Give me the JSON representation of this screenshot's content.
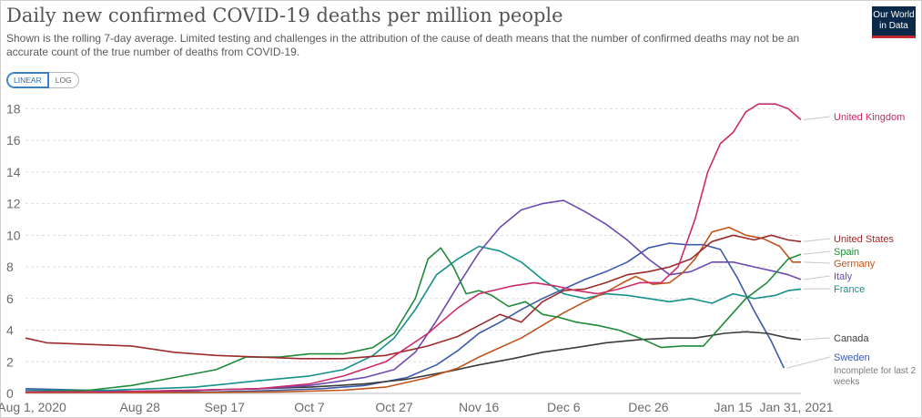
{
  "header": {
    "title": "Daily new confirmed COVID-19 deaths per million people",
    "subtitle": "Shown is the rolling 7-day average. Limited testing and challenges in the attribution of the cause of death means that the number of confirmed deaths may not be an accurate count of the true number of deaths from COVID-19.",
    "logo_line1": "Our World",
    "logo_line2": "in Data"
  },
  "scale_toggle": {
    "linear_label": "LINEAR",
    "log_label": "LOG",
    "selected": "LINEAR"
  },
  "colors": {
    "United Kingdom": "#cc2a6b",
    "United States": "#9c2b2b",
    "Spain": "#1f8a3a",
    "Germany": "#c0541a",
    "Italy": "#6d4ab1",
    "France": "#16908a",
    "Canada": "#3b3b3b",
    "Sweden": "#3d5ba8"
  },
  "chart_data": {
    "type": "line",
    "x_tick_labels": [
      "Aug 1, 2020",
      "Aug 28",
      "Sep 17",
      "Oct 7",
      "Oct 27",
      "Nov 16",
      "Dec 6",
      "Dec 26",
      "Jan 15",
      "Jan 31, 2021"
    ],
    "x_tick_days": [
      0,
      27,
      47,
      67,
      87,
      107,
      127,
      147,
      167,
      183
    ],
    "x_range_days": [
      0,
      183
    ],
    "ylim": [
      0,
      19
    ],
    "y_ticks": [
      0,
      2,
      4,
      6,
      8,
      10,
      12,
      14,
      16,
      18
    ],
    "grid": "horizontal dashed",
    "legend": "line labels at right end",
    "note_sweden": "Incomplete for last 2 weeks",
    "series": [
      {
        "name": "United Kingdom",
        "points": [
          [
            0,
            0.1
          ],
          [
            20,
            0.1
          ],
          [
            40,
            0.2
          ],
          [
            55,
            0.3
          ],
          [
            67,
            0.6
          ],
          [
            75,
            1.1
          ],
          [
            85,
            2.0
          ],
          [
            95,
            3.8
          ],
          [
            102,
            5.4
          ],
          [
            107,
            6.3
          ],
          [
            115,
            6.8
          ],
          [
            120,
            7.0
          ],
          [
            125,
            6.8
          ],
          [
            130,
            6.5
          ],
          [
            135,
            6.3
          ],
          [
            140,
            6.6
          ],
          [
            145,
            7.0
          ],
          [
            150,
            7.0
          ],
          [
            154,
            8.0
          ],
          [
            158,
            11.0
          ],
          [
            161,
            14.0
          ],
          [
            164,
            15.8
          ],
          [
            167,
            16.5
          ],
          [
            170,
            17.8
          ],
          [
            173,
            18.3
          ],
          [
            177,
            18.3
          ],
          [
            180,
            18.0
          ],
          [
            183,
            17.3
          ]
        ]
      },
      {
        "name": "United States",
        "points": [
          [
            0,
            3.5
          ],
          [
            5,
            3.2
          ],
          [
            15,
            3.1
          ],
          [
            25,
            3.0
          ],
          [
            35,
            2.6
          ],
          [
            45,
            2.4
          ],
          [
            55,
            2.3
          ],
          [
            65,
            2.2
          ],
          [
            75,
            2.2
          ],
          [
            85,
            2.4
          ],
          [
            95,
            3.0
          ],
          [
            102,
            3.6
          ],
          [
            107,
            4.3
          ],
          [
            112,
            5.0
          ],
          [
            117,
            4.5
          ],
          [
            122,
            5.8
          ],
          [
            127,
            6.5
          ],
          [
            132,
            6.6
          ],
          [
            137,
            7.0
          ],
          [
            142,
            7.5
          ],
          [
            147,
            7.7
          ],
          [
            152,
            8.0
          ],
          [
            157,
            8.5
          ],
          [
            162,
            9.6
          ],
          [
            167,
            10.0
          ],
          [
            172,
            9.7
          ],
          [
            176,
            10.0
          ],
          [
            180,
            9.7
          ],
          [
            183,
            9.6
          ]
        ]
      },
      {
        "name": "Spain",
        "points": [
          [
            0,
            0.1
          ],
          [
            15,
            0.2
          ],
          [
            25,
            0.5
          ],
          [
            35,
            1.0
          ],
          [
            45,
            1.5
          ],
          [
            52,
            2.3
          ],
          [
            60,
            2.3
          ],
          [
            67,
            2.5
          ],
          [
            75,
            2.5
          ],
          [
            82,
            2.9
          ],
          [
            87,
            3.8
          ],
          [
            92,
            6.0
          ],
          [
            95,
            8.5
          ],
          [
            98,
            9.2
          ],
          [
            101,
            8.0
          ],
          [
            104,
            6.3
          ],
          [
            107,
            6.5
          ],
          [
            110,
            6.2
          ],
          [
            114,
            5.5
          ],
          [
            118,
            5.8
          ],
          [
            122,
            5.0
          ],
          [
            126,
            4.8
          ],
          [
            130,
            4.5
          ],
          [
            135,
            4.3
          ],
          [
            140,
            4.0
          ],
          [
            145,
            3.5
          ],
          [
            150,
            2.9
          ],
          [
            155,
            3.0
          ],
          [
            160,
            3.0
          ],
          [
            165,
            4.5
          ],
          [
            170,
            6.0
          ],
          [
            175,
            7.0
          ],
          [
            180,
            8.5
          ],
          [
            183,
            8.8
          ]
        ]
      },
      {
        "name": "Germany",
        "points": [
          [
            0,
            0.05
          ],
          [
            40,
            0.05
          ],
          [
            60,
            0.1
          ],
          [
            75,
            0.2
          ],
          [
            85,
            0.4
          ],
          [
            95,
            1.0
          ],
          [
            102,
            1.6
          ],
          [
            107,
            2.3
          ],
          [
            112,
            2.9
          ],
          [
            117,
            3.5
          ],
          [
            122,
            4.3
          ],
          [
            127,
            5.1
          ],
          [
            132,
            5.8
          ],
          [
            137,
            6.4
          ],
          [
            141,
            7.0
          ],
          [
            144,
            7.4
          ],
          [
            148,
            6.9
          ],
          [
            152,
            7.0
          ],
          [
            155,
            7.6
          ],
          [
            158,
            8.5
          ],
          [
            162,
            10.2
          ],
          [
            166,
            10.5
          ],
          [
            170,
            10.0
          ],
          [
            174,
            9.8
          ],
          [
            178,
            9.3
          ],
          [
            181,
            8.3
          ],
          [
            183,
            8.3
          ]
        ]
      },
      {
        "name": "Italy",
        "points": [
          [
            0,
            0.1
          ],
          [
            20,
            0.1
          ],
          [
            40,
            0.2
          ],
          [
            55,
            0.3
          ],
          [
            67,
            0.5
          ],
          [
            80,
            1.0
          ],
          [
            87,
            1.5
          ],
          [
            92,
            2.6
          ],
          [
            97,
            4.6
          ],
          [
            102,
            6.8
          ],
          [
            107,
            8.9
          ],
          [
            112,
            10.5
          ],
          [
            117,
            11.6
          ],
          [
            122,
            12.0
          ],
          [
            127,
            12.2
          ],
          [
            132,
            11.5
          ],
          [
            137,
            10.7
          ],
          [
            142,
            9.7
          ],
          [
            147,
            8.5
          ],
          [
            152,
            7.5
          ],
          [
            157,
            7.7
          ],
          [
            162,
            8.3
          ],
          [
            167,
            8.3
          ],
          [
            172,
            8.0
          ],
          [
            177,
            7.7
          ],
          [
            180,
            7.5
          ],
          [
            183,
            7.2
          ]
        ]
      },
      {
        "name": "France",
        "points": [
          [
            0,
            0.2
          ],
          [
            20,
            0.2
          ],
          [
            40,
            0.4
          ],
          [
            55,
            0.8
          ],
          [
            67,
            1.1
          ],
          [
            75,
            1.5
          ],
          [
            82,
            2.4
          ],
          [
            87,
            3.5
          ],
          [
            92,
            5.3
          ],
          [
            97,
            7.5
          ],
          [
            102,
            8.5
          ],
          [
            107,
            9.3
          ],
          [
            112,
            9.0
          ],
          [
            117,
            8.3
          ],
          [
            122,
            7.2
          ],
          [
            127,
            6.3
          ],
          [
            132,
            6.0
          ],
          [
            137,
            6.3
          ],
          [
            142,
            6.2
          ],
          [
            147,
            6.0
          ],
          [
            152,
            5.8
          ],
          [
            157,
            6.0
          ],
          [
            162,
            5.7
          ],
          [
            167,
            6.3
          ],
          [
            172,
            6.0
          ],
          [
            177,
            6.2
          ],
          [
            180,
            6.5
          ],
          [
            183,
            6.6
          ]
        ]
      },
      {
        "name": "Canada",
        "points": [
          [
            0,
            0.1
          ],
          [
            20,
            0.1
          ],
          [
            40,
            0.2
          ],
          [
            55,
            0.3
          ],
          [
            67,
            0.4
          ],
          [
            80,
            0.6
          ],
          [
            90,
            0.9
          ],
          [
            100,
            1.4
          ],
          [
            107,
            1.8
          ],
          [
            115,
            2.2
          ],
          [
            122,
            2.6
          ],
          [
            130,
            2.9
          ],
          [
            137,
            3.2
          ],
          [
            145,
            3.4
          ],
          [
            152,
            3.5
          ],
          [
            158,
            3.5
          ],
          [
            165,
            3.8
          ],
          [
            170,
            3.9
          ],
          [
            175,
            3.8
          ],
          [
            180,
            3.5
          ],
          [
            183,
            3.4
          ]
        ]
      },
      {
        "name": "Sweden",
        "points": [
          [
            0,
            0.3
          ],
          [
            15,
            0.2
          ],
          [
            30,
            0.1
          ],
          [
            45,
            0.1
          ],
          [
            60,
            0.2
          ],
          [
            70,
            0.3
          ],
          [
            80,
            0.5
          ],
          [
            90,
            1.0
          ],
          [
            97,
            1.8
          ],
          [
            102,
            2.7
          ],
          [
            107,
            3.8
          ],
          [
            112,
            4.5
          ],
          [
            117,
            5.3
          ],
          [
            122,
            6.0
          ],
          [
            127,
            6.6
          ],
          [
            132,
            7.2
          ],
          [
            137,
            7.7
          ],
          [
            142,
            8.3
          ],
          [
            147,
            9.2
          ],
          [
            152,
            9.5
          ],
          [
            156,
            9.4
          ],
          [
            160,
            9.4
          ],
          [
            164,
            9.1
          ],
          [
            168,
            7.3
          ],
          [
            172,
            5.2
          ],
          [
            176,
            3.3
          ],
          [
            179,
            1.6
          ]
        ]
      }
    ]
  }
}
